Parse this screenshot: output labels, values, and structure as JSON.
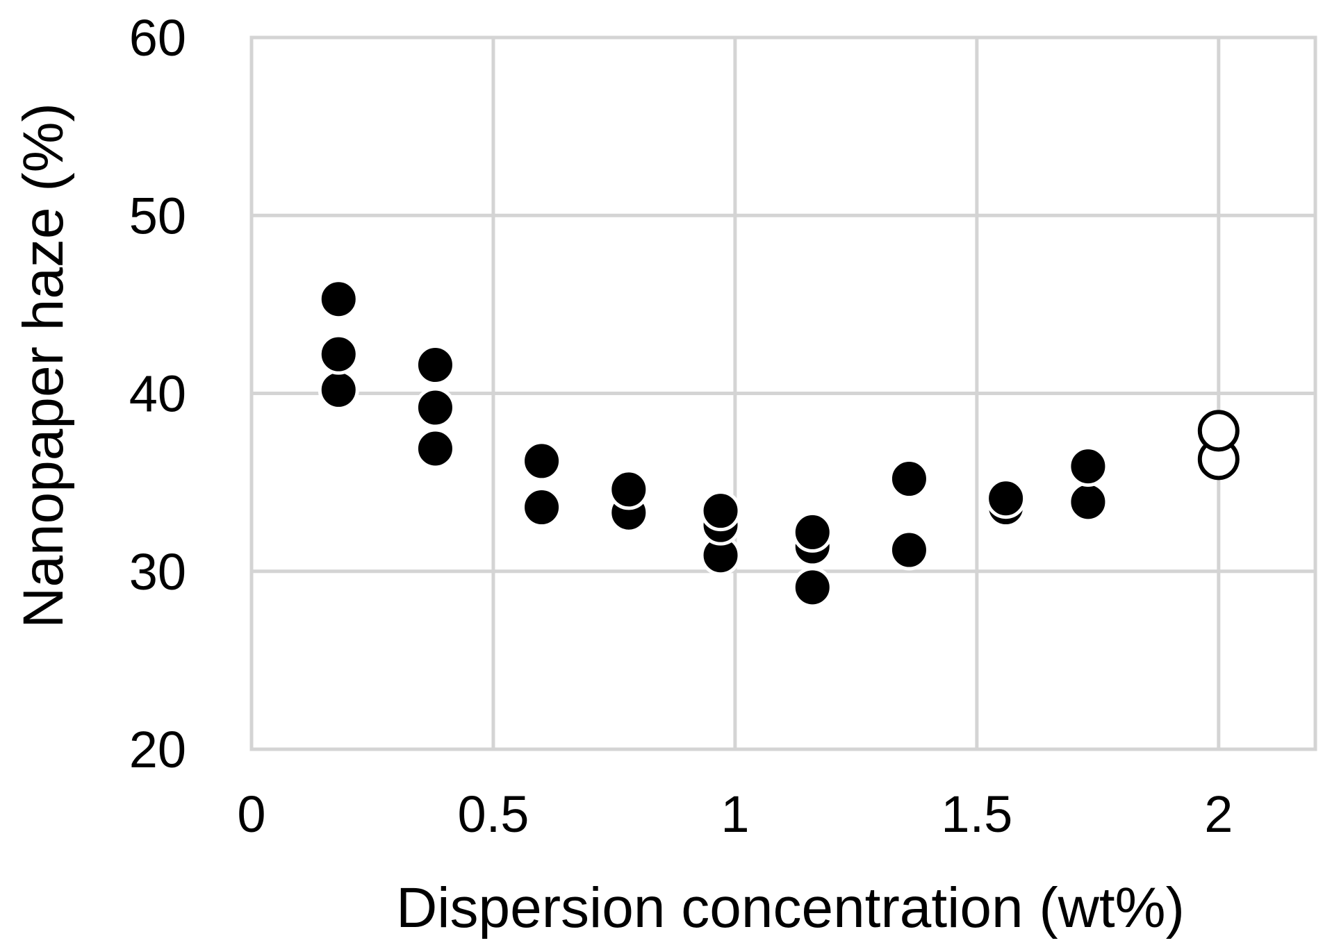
{
  "chart_data": {
    "type": "scatter",
    "title": "",
    "xlabel": "Dispersion concentration (wt%)",
    "ylabel": "Nanopaper haze (%)",
    "xlim": [
      0,
      2.2
    ],
    "ylim": [
      20,
      60
    ],
    "x_ticks": [
      0,
      0.5,
      1,
      1.5,
      2
    ],
    "x_tick_labels": [
      "0",
      "0.5",
      "1",
      "1.5",
      "2"
    ],
    "y_ticks": [
      20,
      30,
      40,
      50,
      60
    ],
    "y_tick_labels": [
      "20",
      "30",
      "40",
      "50",
      "60"
    ],
    "grid": true,
    "legend": "none",
    "series": [
      {
        "marker": "filled-circle",
        "color": "#000000",
        "points": [
          [
            0.18,
            40.2
          ],
          [
            0.18,
            42.2
          ],
          [
            0.18,
            45.3
          ],
          [
            0.38,
            36.9
          ],
          [
            0.38,
            39.2
          ],
          [
            0.38,
            41.6
          ],
          [
            0.6,
            33.6
          ],
          [
            0.6,
            36.2
          ],
          [
            0.78,
            33.3
          ],
          [
            0.78,
            34.6
          ],
          [
            0.97,
            30.9
          ],
          [
            0.97,
            32.6
          ],
          [
            0.97,
            33.4
          ],
          [
            1.16,
            29.1
          ],
          [
            1.16,
            31.4
          ],
          [
            1.16,
            32.2
          ],
          [
            1.36,
            31.2
          ],
          [
            1.36,
            35.2
          ],
          [
            1.56,
            33.6
          ],
          [
            1.56,
            34.1
          ],
          [
            1.73,
            33.9
          ],
          [
            1.73,
            35.9
          ]
        ]
      },
      {
        "marker": "open-circle",
        "color": "#000000",
        "points": [
          [
            2.0,
            36.3
          ],
          [
            2.0,
            37.9
          ]
        ]
      }
    ]
  }
}
